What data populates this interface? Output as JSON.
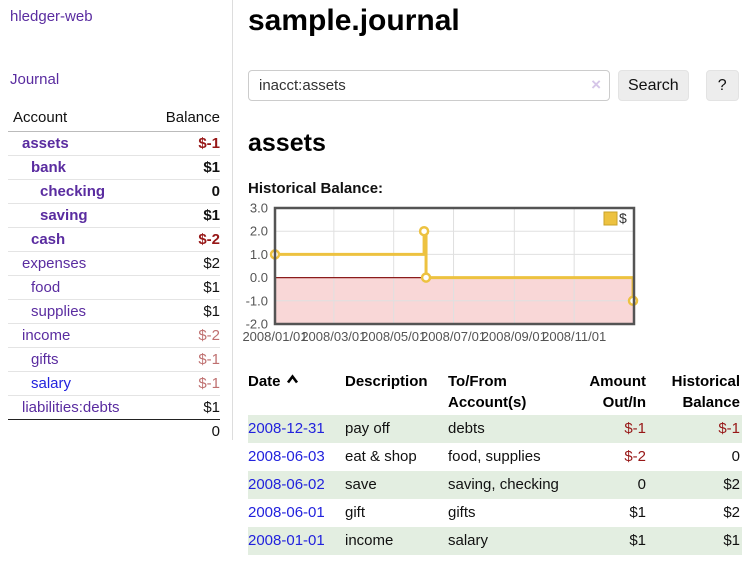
{
  "app": {
    "title": "hledger-web"
  },
  "colors": {
    "link_purple": "#5a2ca0",
    "link_blue": "#2222dd",
    "negative_red": "#971717",
    "negative_dim_red": "#bf7070",
    "row_green": "#e3eee1",
    "chart_yellow": "#edc240"
  },
  "sidebar": {
    "journal_label": "Journal",
    "accounts_table": {
      "headers": [
        "Account",
        "Balance"
      ],
      "rows": [
        {
          "name": "assets",
          "balance": "$-1"
        },
        {
          "name": "bank",
          "balance": "$1"
        },
        {
          "name": "checking",
          "balance": "0"
        },
        {
          "name": "saving",
          "balance": "$1"
        },
        {
          "name": "cash",
          "balance": "$-2"
        },
        {
          "name": "expenses",
          "balance": "$2"
        },
        {
          "name": "food",
          "balance": "$1"
        },
        {
          "name": "supplies",
          "balance": "$1"
        },
        {
          "name": "income",
          "balance": "$-2"
        },
        {
          "name": "gifts",
          "balance": "$-1"
        },
        {
          "name": "salary",
          "balance": "$-1"
        },
        {
          "name": "liabilities:debts",
          "balance": "$1"
        }
      ],
      "total": "0"
    }
  },
  "main": {
    "title": "sample.journal",
    "search": {
      "value": "inacct:assets",
      "clear_icon": "×",
      "button_label": "Search",
      "help_label": "?"
    },
    "account_heading": "assets"
  },
  "chart_data": {
    "type": "line",
    "step": true,
    "title": "Historical Balance:",
    "legend": {
      "label": "$",
      "position": "top-right"
    },
    "ylim": [
      -2,
      3
    ],
    "yticks": [
      {
        "label": "3.0",
        "value": 3
      },
      {
        "label": "2.0",
        "value": 2
      },
      {
        "label": "1.0",
        "value": 1
      },
      {
        "label": "0.0",
        "value": 0
      },
      {
        "label": "-1.0",
        "value": -1
      },
      {
        "label": "-2.0",
        "value": -2
      }
    ],
    "xlim_days": [
      0,
      366
    ],
    "xticks": [
      {
        "label": "2008/01/01",
        "day": 0
      },
      {
        "label": "2008/03/01",
        "day": 60
      },
      {
        "label": "2008/05/01",
        "day": 121
      },
      {
        "label": "2008/07/01",
        "day": 182
      },
      {
        "label": "2008/09/01",
        "day": 244
      },
      {
        "label": "2008/11/01",
        "day": 305
      }
    ],
    "series": [
      {
        "name": "$",
        "color": "#edc240",
        "points": [
          {
            "date": "2008-01-01",
            "day": 0,
            "value": 1
          },
          {
            "date": "2008-06-01",
            "day": 152,
            "value": 2
          },
          {
            "date": "2008-06-03",
            "day": 154,
            "value": 0
          },
          {
            "date": "2008-12-31",
            "day": 365,
            "value": -1
          }
        ]
      }
    ],
    "negative_fill": "#f9d7d7",
    "zero_line_color": "#8b1c1c",
    "grid": true
  },
  "register": {
    "headers": {
      "date": "Date",
      "description": "Description",
      "accounts": "To/From Account(s)",
      "amount": "Amount Out/In",
      "balance": "Historical Balance"
    },
    "rows": [
      {
        "date": "2008-12-31",
        "description": "pay off",
        "accounts": "debts",
        "amount": "$-1",
        "balance": "$-1"
      },
      {
        "date": "2008-06-03",
        "description": "eat & shop",
        "accounts": "food, supplies",
        "amount": "$-2",
        "balance": "0"
      },
      {
        "date": "2008-06-02",
        "description": "save",
        "accounts": "saving, checking",
        "amount": "0",
        "balance": "$2"
      },
      {
        "date": "2008-06-01",
        "description": "gift",
        "accounts": "gifts",
        "amount": "$1",
        "balance": "$2"
      },
      {
        "date": "2008-01-01",
        "description": "income",
        "accounts": "salary",
        "amount": "$1",
        "balance": "$1"
      }
    ]
  }
}
